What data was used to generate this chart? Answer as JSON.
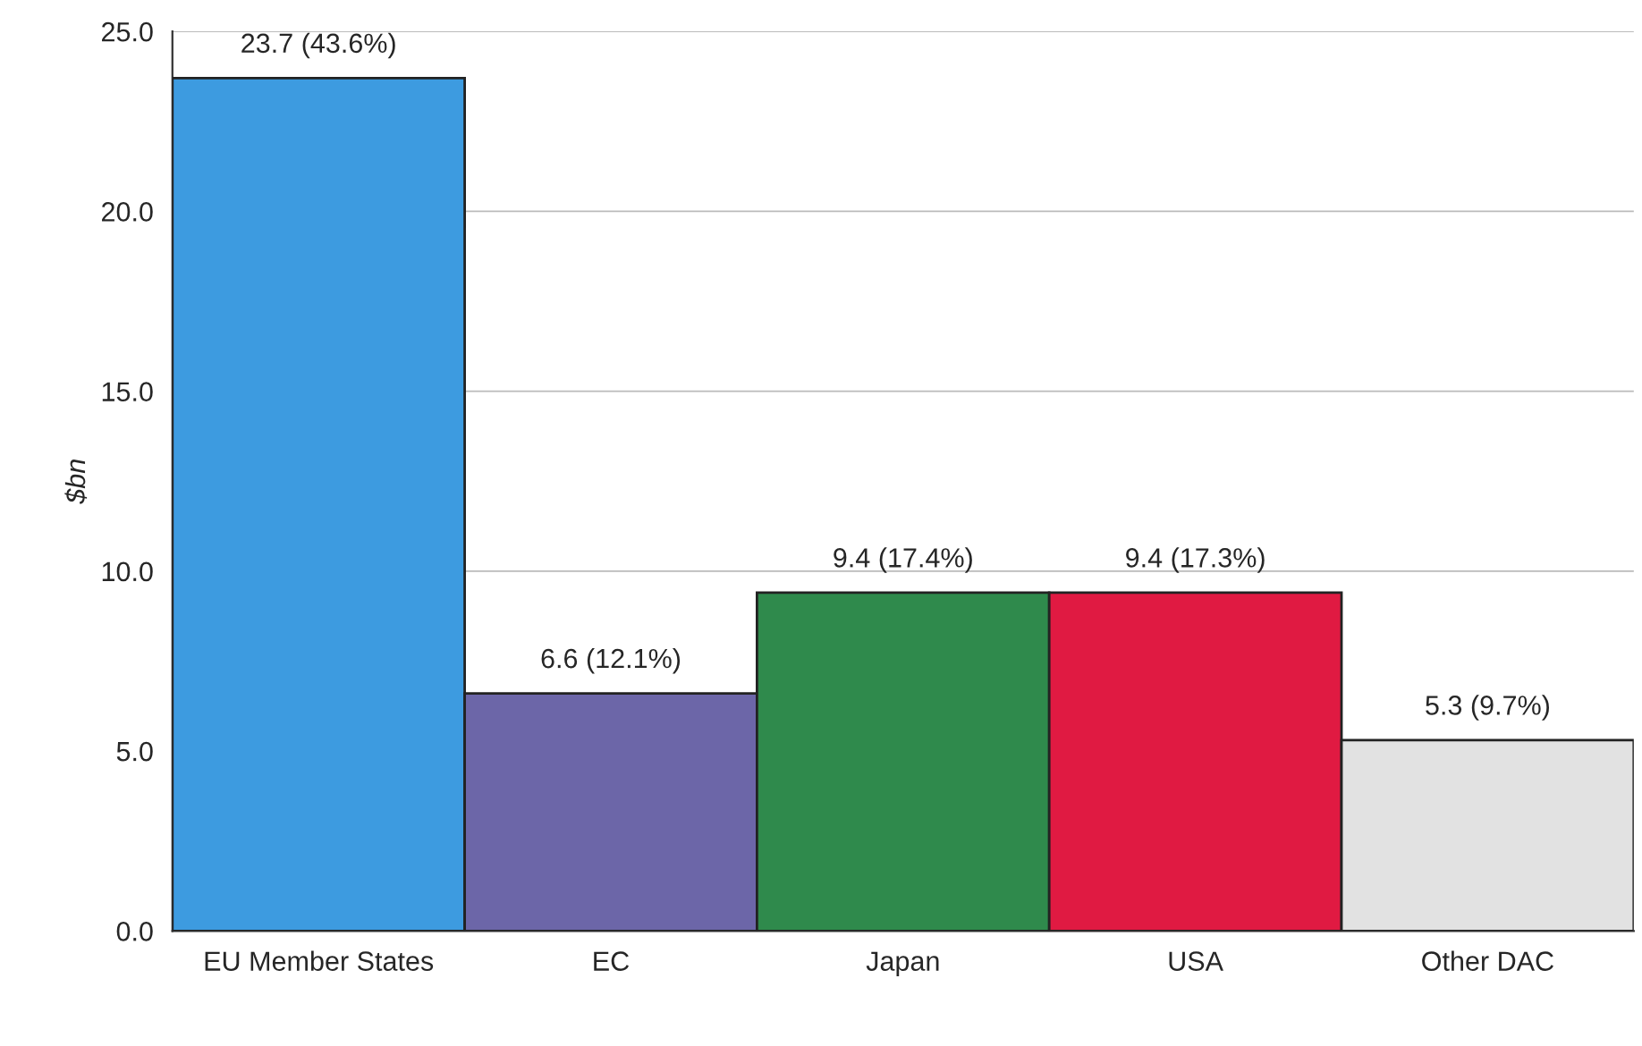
{
  "chart_data": {
    "type": "bar",
    "ylabel": "$bn",
    "categories": [
      "EU Member States",
      "EC",
      "Japan",
      "USA",
      "Other DAC"
    ],
    "values": [
      23.7,
      6.6,
      9.4,
      9.4,
      5.3
    ],
    "colors": [
      "#3d9be0",
      "#6c66a8",
      "#2f8a4c",
      "#e01a42",
      "#e2e2e2"
    ],
    "value_labels": [
      "23.7 (43.6%)",
      "6.6 (12.1%)",
      "9.4 (17.4%)",
      "9.4 (17.3%)",
      "5.3 (9.7%)"
    ],
    "ylim": [
      0,
      25
    ],
    "yticks": [
      {
        "value": 0,
        "label": "0.0"
      },
      {
        "value": 5,
        "label": "5.0"
      },
      {
        "value": 10,
        "label": "10.0"
      },
      {
        "value": 15,
        "label": "15.0"
      },
      {
        "value": 20,
        "label": "20.0"
      },
      {
        "value": 25,
        "label": "25.0"
      }
    ],
    "grid": "y"
  }
}
